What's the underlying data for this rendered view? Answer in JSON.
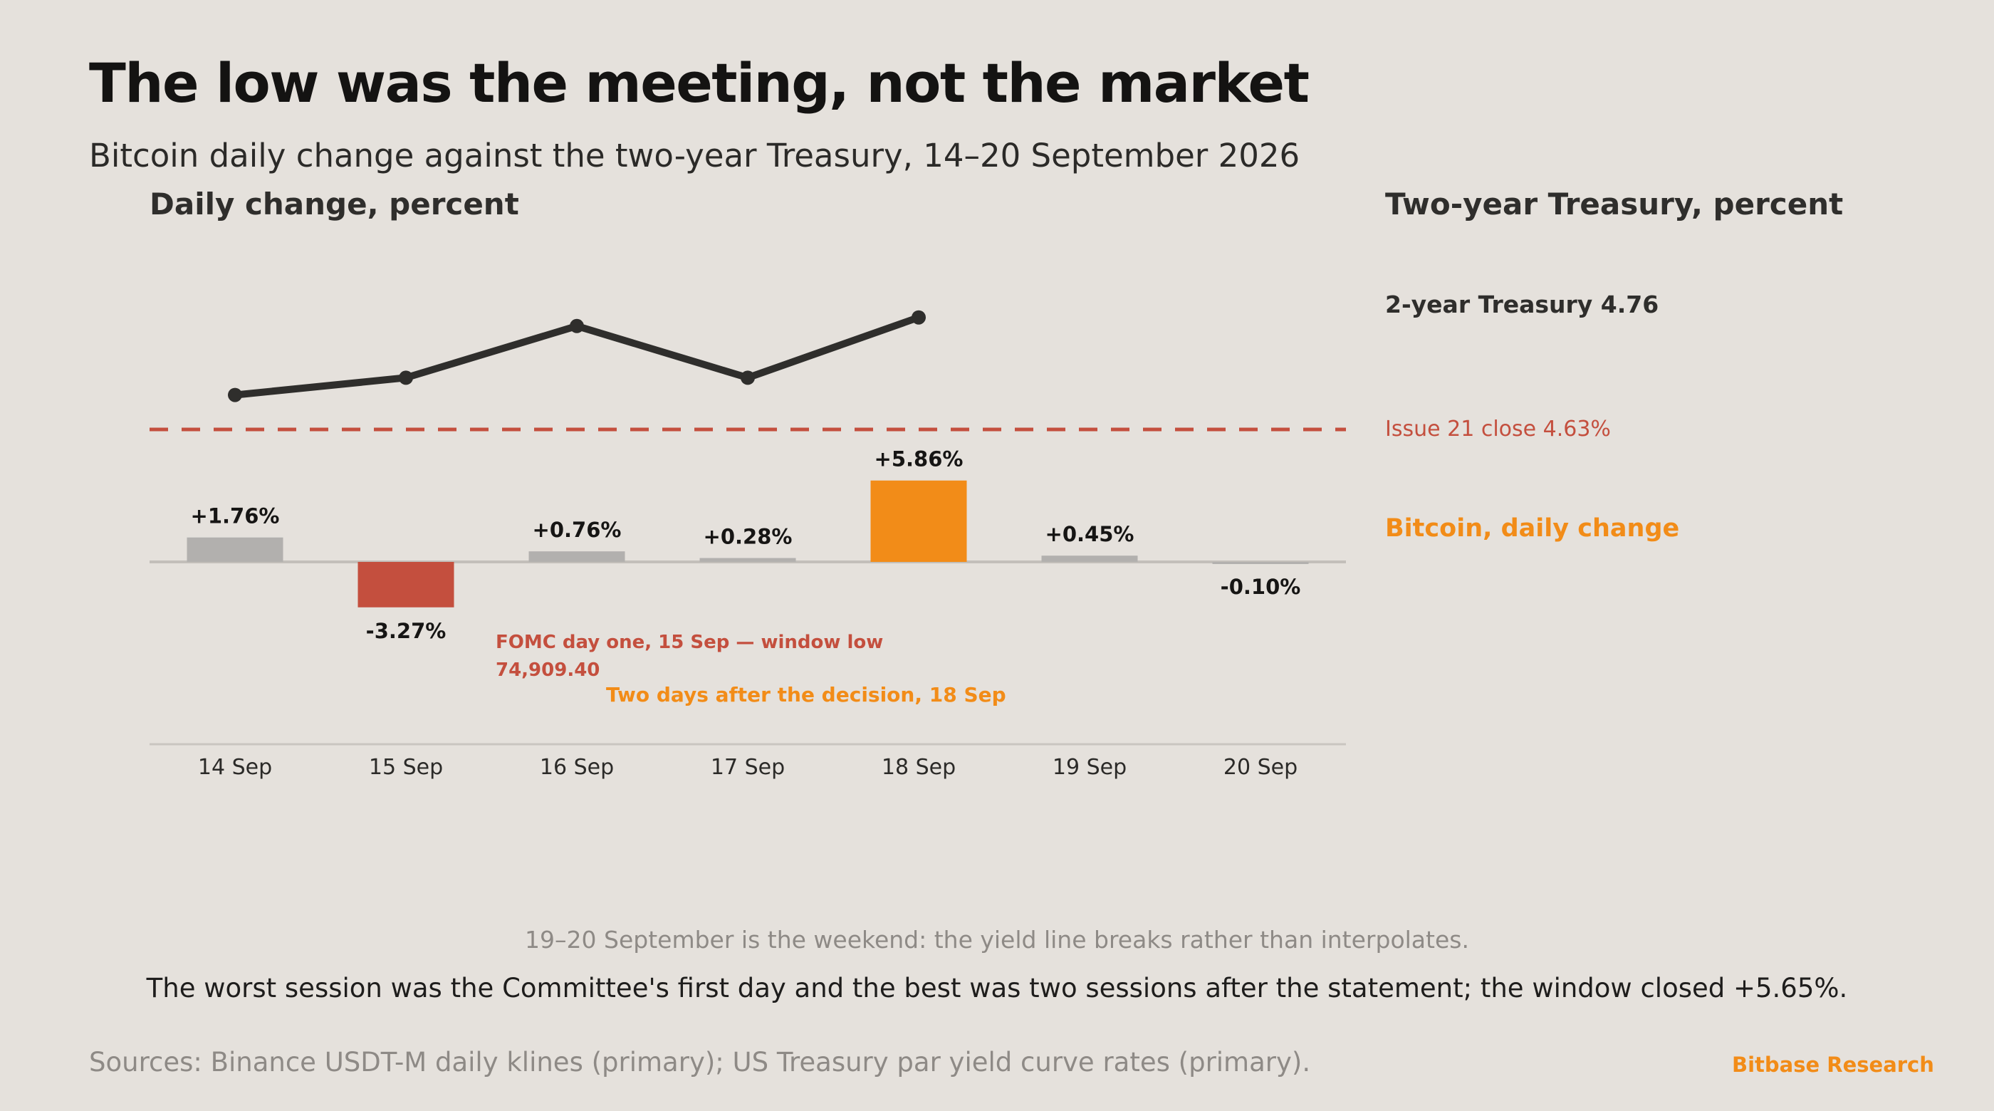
{
  "header": {
    "title": "The low was the meeting, not the market",
    "subtitle": "Bitcoin daily change against the two-year Treasury, 14–20 September 2026"
  },
  "axes": {
    "left_title": "Daily change, percent",
    "right_title": "Two-year Treasury, percent"
  },
  "legend": {
    "treasury": "2-year Treasury 4.76",
    "issue_close": "Issue 21 close 4.63%",
    "bitcoin": "Bitcoin, daily change"
  },
  "chart_data": {
    "type": "bar",
    "categories": [
      "14 Sep",
      "15 Sep",
      "16 Sep",
      "17 Sep",
      "18 Sep",
      "19 Sep",
      "20 Sep"
    ],
    "series": [
      {
        "name": "Bitcoin, daily change",
        "values": [
          1.76,
          -3.27,
          0.76,
          0.28,
          5.86,
          0.45,
          -0.1
        ],
        "labels": [
          "+1.76%",
          "-3.27%",
          "+0.76%",
          "+0.28%",
          "+5.86%",
          "+0.45%",
          "-0.10%"
        ],
        "bar_colors": [
          "#b2b0ae",
          "#c44f3e",
          "#b2b0ae",
          "#b2b0ae",
          "#f28c18",
          "#b2b0ae",
          "#b2b0ae"
        ]
      },
      {
        "name": "2-year Treasury",
        "type": "line",
        "values": [
          4.67,
          4.69,
          4.75,
          4.69,
          4.76,
          null,
          null
        ]
      }
    ],
    "reference_line": {
      "label": "Issue 21 close 4.63%",
      "value": 4.63,
      "color": "#c44f3e"
    },
    "annotations": [
      {
        "text": "FOMC day one, 15 Sep — window low",
        "text2": "74,909.40",
        "color": "#c44f3e"
      },
      {
        "text": "Two days after the decision, 18 Sep",
        "color": "#f28c18"
      }
    ],
    "ylabel_left": "Daily change, percent",
    "ylabel_right": "Two-year Treasury, percent",
    "grid": false
  },
  "footer": {
    "note": "19–20 September is the weekend: the yield line breaks rather than interpolates.",
    "takeaway": "The worst session was the Committee's first day and the best was two sessions after the statement; the window closed +5.65%.",
    "sources": "Sources: Binance USDT-M daily klines (primary); US Treasury par yield curve rates (primary).",
    "brand": "Bitbase Research"
  },
  "colors": {
    "background": "#e5e1dc",
    "accent": "#f28c18",
    "negative": "#c44f3e",
    "neutral_bar": "#b2b0ae",
    "line": "#2f2e2c"
  }
}
